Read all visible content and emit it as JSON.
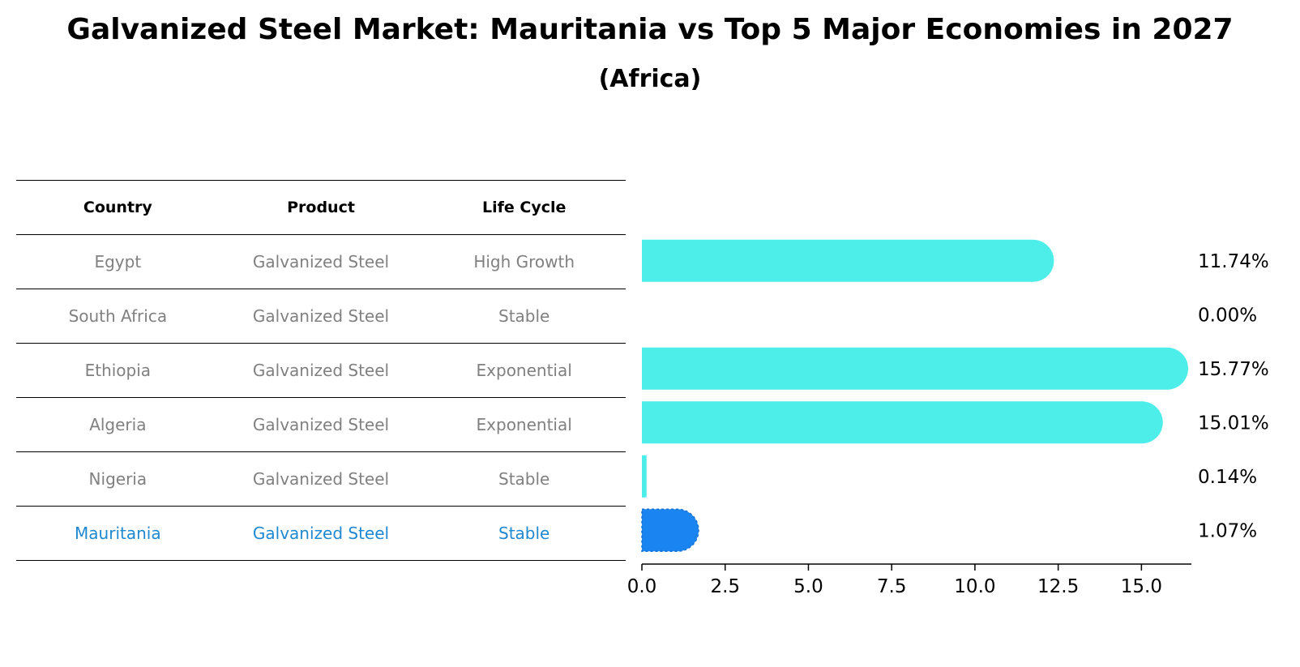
{
  "title": "Galvanized Steel Market: Mauritania vs Top 5 Major Economies in 2027",
  "subtitle": "(Africa)",
  "table": {
    "headers": [
      "Country",
      "Product",
      "Life Cycle"
    ],
    "rows": [
      {
        "country": "Egypt",
        "product": "Galvanized Steel",
        "life_cycle": "High Growth"
      },
      {
        "country": "South Africa",
        "product": "Galvanized Steel",
        "life_cycle": "Stable"
      },
      {
        "country": "Ethiopia",
        "product": "Galvanized Steel",
        "life_cycle": "Exponential"
      },
      {
        "country": "Algeria",
        "product": "Galvanized Steel",
        "life_cycle": "Exponential"
      },
      {
        "country": "Nigeria",
        "product": "Galvanized Steel",
        "life_cycle": "Stable"
      },
      {
        "country": "Mauritania",
        "product": "Galvanized Steel",
        "life_cycle": "Stable"
      }
    ]
  },
  "colors": {
    "bar": "#4deeea",
    "highlight_bar": "#1a85f0",
    "highlight_text": "#1e88d0",
    "muted_text": "#808080"
  },
  "chart_data": {
    "type": "bar",
    "orientation": "horizontal",
    "categories": [
      "Egypt",
      "South Africa",
      "Ethiopia",
      "Algeria",
      "Nigeria",
      "Mauritania"
    ],
    "values": [
      11.74,
      0.0,
      15.77,
      15.01,
      0.14,
      1.07
    ],
    "value_labels": [
      "11.74%",
      "0.00%",
      "15.77%",
      "15.01%",
      "0.14%",
      "1.07%"
    ],
    "highlight": "Mauritania",
    "xlim": [
      0,
      16.5
    ],
    "xticks": [
      0.0,
      2.5,
      5.0,
      7.5,
      10.0,
      12.5,
      15.0
    ],
    "xtick_labels": [
      "0.0",
      "2.5",
      "5.0",
      "7.5",
      "10.0",
      "12.5",
      "15.0"
    ],
    "grid": false,
    "legend": "none"
  }
}
